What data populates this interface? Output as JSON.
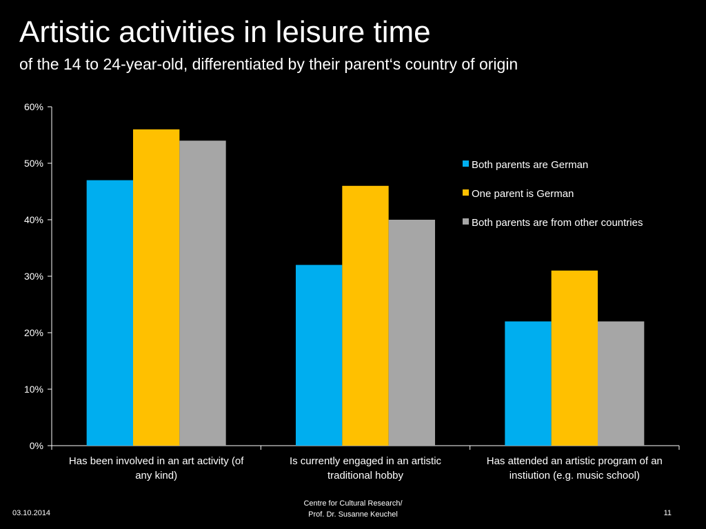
{
  "slide": {
    "title": "Artistic activities in leisure time",
    "subtitle": "of the 14 to 24-year-old, differentiated by their parent‘s country of origin"
  },
  "chart_data": {
    "type": "bar",
    "categories": [
      [
        "Has been involved in an art activity (of",
        "any kind)"
      ],
      [
        "Is currently engaged in an artistic",
        "traditional hobby"
      ],
      [
        "Has attended an artistic program of an",
        "instiution (e.g. music school)"
      ]
    ],
    "series": [
      {
        "name": "Both parents are German",
        "color": "#00AEEF",
        "values": [
          47,
          32,
          22
        ]
      },
      {
        "name": "One parent is German",
        "color": "#FFC000",
        "values": [
          56,
          46,
          31
        ]
      },
      {
        "name": "Both parents are from other countries",
        "color": "#A6A6A6",
        "values": [
          54,
          40,
          22
        ]
      }
    ],
    "y_ticks": [
      "0%",
      "10%",
      "20%",
      "30%",
      "40%",
      "50%",
      "60%"
    ],
    "ylim": [
      0,
      60
    ],
    "grid": false,
    "legend_position": "right",
    "xlabel": "",
    "ylabel": ""
  },
  "footer": {
    "date": "03.10.2014",
    "center_lines": [
      "Centre for Cultural Research/",
      "Prof. Dr. Susanne Keuchel"
    ],
    "page": "11"
  }
}
